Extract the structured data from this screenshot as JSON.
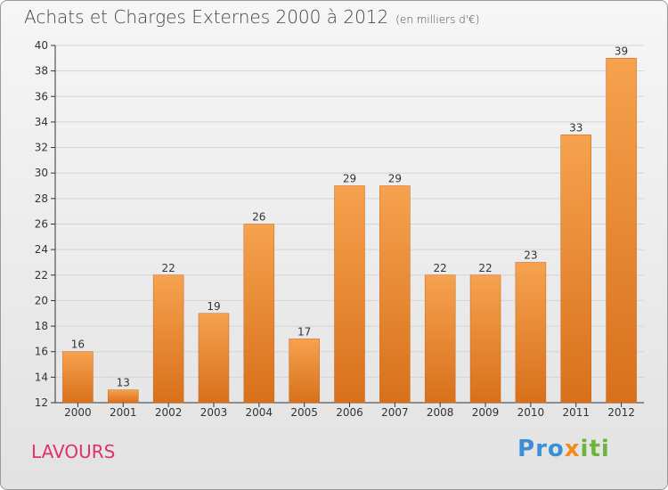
{
  "title": "Achats et Charges Externes 2000 à 2012",
  "subtitle": "(en milliers d'€)",
  "footer_label": "LAVOURS",
  "logo": {
    "text": "Proxiti",
    "letters": [
      {
        "ch": "P",
        "color": "#3a8fd6"
      },
      {
        "ch": "r",
        "color": "#3a8fd6"
      },
      {
        "ch": "o",
        "color": "#3a8fd6"
      },
      {
        "ch": "x",
        "color": "#f28a1c"
      },
      {
        "ch": "i",
        "color": "#6cb33f"
      },
      {
        "ch": "t",
        "color": "#6cb33f"
      },
      {
        "ch": "i",
        "color": "#6cb33f"
      }
    ]
  },
  "colors": {
    "bar_top": "#f6a24e",
    "bar_bottom": "#d8701b",
    "axis": "#333333"
  },
  "chart_data": {
    "type": "bar",
    "title": "Achats et Charges Externes 2000 à 2012",
    "subtitle": "(en milliers d'€)",
    "categories": [
      "2000",
      "2001",
      "2002",
      "2003",
      "2004",
      "2005",
      "2006",
      "2007",
      "2008",
      "2009",
      "2010",
      "2011",
      "2012"
    ],
    "values": [
      16,
      13,
      22,
      19,
      26,
      17,
      29,
      29,
      22,
      22,
      23,
      33,
      39
    ],
    "ylim": [
      12,
      40
    ],
    "yticks": [
      12,
      14,
      16,
      18,
      20,
      22,
      24,
      26,
      28,
      30,
      32,
      34,
      36,
      38,
      40
    ],
    "grid": true
  }
}
